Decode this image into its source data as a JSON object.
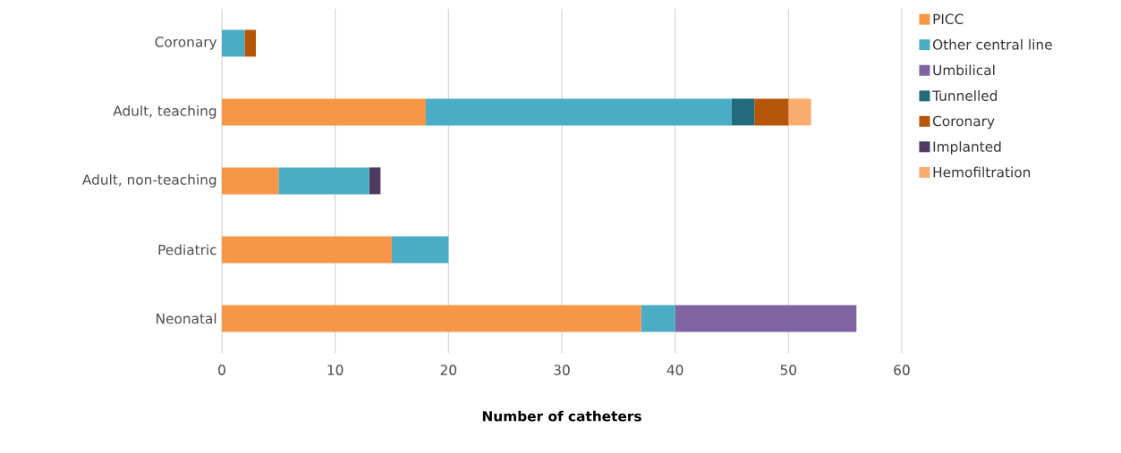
{
  "chart_data": {
    "type": "bar",
    "orientation": "horizontal",
    "stacked": true,
    "xlabel": "Number of catheters",
    "categories": [
      "Coronary",
      "Adult, teaching",
      "Adult, non-teaching",
      "Pediatric",
      "Neonatal"
    ],
    "series": [
      {
        "name": "PICC",
        "color": "#f79646",
        "values": [
          0,
          18,
          5,
          15,
          37
        ]
      },
      {
        "name": "Other central line",
        "color": "#4bacc6",
        "values": [
          2,
          27,
          8,
          5,
          3
        ]
      },
      {
        "name": "Umbilical",
        "color": "#8064a2",
        "values": [
          0,
          0,
          0,
          0,
          16
        ]
      },
      {
        "name": "Tunnelled",
        "color": "#246a7b",
        "values": [
          0,
          2,
          0,
          0,
          0
        ]
      },
      {
        "name": "Coronary",
        "color": "#b55608",
        "values": [
          1,
          3,
          0,
          0,
          0
        ]
      },
      {
        "name": "Implanted",
        "color": "#4f3a62",
        "values": [
          0,
          0,
          1,
          0,
          0
        ]
      },
      {
        "name": "Hemofiltration",
        "color": "#f9ac6d",
        "values": [
          0,
          2,
          0,
          0,
          0
        ]
      }
    ],
    "xlim": [
      0,
      60
    ],
    "xticks": [
      0,
      10,
      20,
      30,
      40,
      50,
      60
    ],
    "grid": "x",
    "legend": "right"
  }
}
